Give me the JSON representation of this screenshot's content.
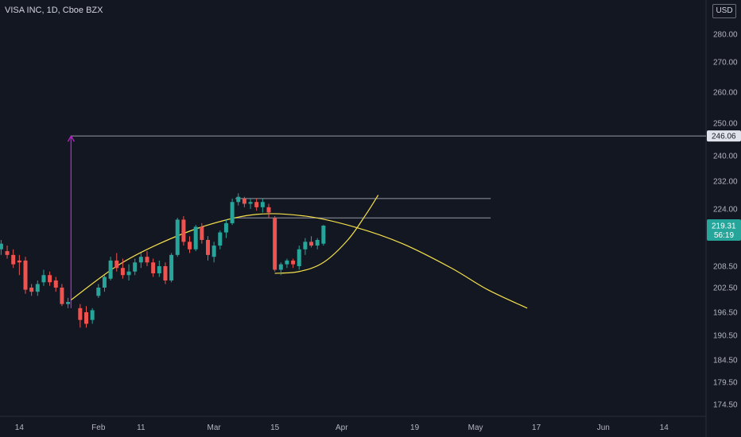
{
  "header": {
    "title": "VISA INC, 1D, Cboe BZX",
    "currency": "USD"
  },
  "chart_data": {
    "type": "candlestick",
    "title": "VISA INC, 1D, Cboe BZX",
    "ylim": [
      170,
      290
    ],
    "y_ticks": [
      {
        "label": "280.00",
        "v": 280
      },
      {
        "label": "270.00",
        "v": 270
      },
      {
        "label": "260.00",
        "v": 260
      },
      {
        "label": "250.00",
        "v": 250
      },
      {
        "label": "240.00",
        "v": 240
      },
      {
        "label": "232.00",
        "v": 232
      },
      {
        "label": "224.00",
        "v": 224
      },
      {
        "label": "208.50",
        "v": 208.5
      },
      {
        "label": "202.50",
        "v": 202.5
      },
      {
        "label": "196.50",
        "v": 196.5
      },
      {
        "label": "190.50",
        "v": 190.5
      },
      {
        "label": "184.50",
        "v": 184.5
      },
      {
        "label": "179.50",
        "v": 179.5
      },
      {
        "label": "174.50",
        "v": 174.5
      }
    ],
    "x_ticks": [
      {
        "label": "14",
        "i": -11
      },
      {
        "label": "Feb",
        "i": 2
      },
      {
        "label": "11",
        "i": 9
      },
      {
        "label": "Mar",
        "i": 21
      },
      {
        "label": "15",
        "i": 31
      },
      {
        "label": "Apr",
        "i": 42
      },
      {
        "label": "19",
        "i": 54
      },
      {
        "label": "May",
        "i": 64
      },
      {
        "label": "17",
        "i": 74
      },
      {
        "label": "Jun",
        "i": 85
      },
      {
        "label": "14",
        "i": 95
      }
    ],
    "price_tags": [
      {
        "label": "246.06",
        "v": 246.06,
        "style": "line"
      },
      {
        "label": "219.31",
        "sublabel": "56:19",
        "v": 219.31,
        "style": "last"
      }
    ],
    "candles": [
      {
        "i": -14,
        "o": 213.0,
        "h": 215.5,
        "l": 211.5,
        "c": 214.5
      },
      {
        "i": -13,
        "o": 212.5,
        "h": 214.0,
        "l": 210.5,
        "c": 211.5
      },
      {
        "i": -12,
        "o": 211.5,
        "h": 213.0,
        "l": 208.0,
        "c": 209.0
      },
      {
        "i": -11,
        "o": 210.0,
        "h": 211.5,
        "l": 206.0,
        "c": 209.5
      },
      {
        "i": -10,
        "o": 210.0,
        "h": 211.0,
        "l": 201.0,
        "c": 202.0
      },
      {
        "i": -9,
        "o": 202.5,
        "h": 203.5,
        "l": 200.5,
        "c": 201.5
      },
      {
        "i": -8,
        "o": 201.5,
        "h": 204.5,
        "l": 200.5,
        "c": 203.5
      },
      {
        "i": -7,
        "o": 204.0,
        "h": 207.5,
        "l": 203.0,
        "c": 206.0
      },
      {
        "i": -6,
        "o": 206.0,
        "h": 207.0,
        "l": 203.0,
        "c": 204.0
      },
      {
        "i": -5,
        "o": 204.5,
        "h": 205.5,
        "l": 201.5,
        "c": 202.5
      },
      {
        "i": -4,
        "o": 202.5,
        "h": 203.5,
        "l": 198.0,
        "c": 198.5
      },
      {
        "i": -3,
        "o": 198.5,
        "h": 200.0,
        "l": 197.5,
        "c": 199.0
      },
      {
        "i": -1,
        "o": 197.5,
        "h": 198.5,
        "l": 192.5,
        "c": 194.5
      },
      {
        "i": 0,
        "o": 196.5,
        "h": 198.0,
        "l": 192.5,
        "c": 193.5
      },
      {
        "i": 1,
        "o": 194.5,
        "h": 197.5,
        "l": 193.5,
        "c": 197.0
      },
      {
        "i": 2,
        "o": 200.5,
        "h": 203.5,
        "l": 200.0,
        "c": 202.5
      },
      {
        "i": 3,
        "o": 202.5,
        "h": 206.0,
        "l": 201.5,
        "c": 205.5
      },
      {
        "i": 4,
        "o": 205.0,
        "h": 211.0,
        "l": 204.5,
        "c": 210.0
      },
      {
        "i": 5,
        "o": 210.0,
        "h": 212.0,
        "l": 207.0,
        "c": 208.0
      },
      {
        "i": 6,
        "o": 208.0,
        "h": 210.5,
        "l": 205.0,
        "c": 206.0
      },
      {
        "i": 7,
        "o": 206.0,
        "h": 209.0,
        "l": 204.5,
        "c": 207.0
      },
      {
        "i": 8,
        "o": 207.0,
        "h": 210.5,
        "l": 206.0,
        "c": 209.5
      },
      {
        "i": 9,
        "o": 209.5,
        "h": 212.0,
        "l": 208.0,
        "c": 211.0
      },
      {
        "i": 10,
        "o": 211.0,
        "h": 212.5,
        "l": 208.5,
        "c": 209.5
      },
      {
        "i": 11,
        "o": 209.5,
        "h": 210.5,
        "l": 205.5,
        "c": 206.5
      },
      {
        "i": 12,
        "o": 206.5,
        "h": 210.0,
        "l": 205.5,
        "c": 208.5
      },
      {
        "i": 13,
        "o": 208.5,
        "h": 209.5,
        "l": 203.5,
        "c": 204.5
      },
      {
        "i": 14,
        "o": 204.5,
        "h": 212.0,
        "l": 204.0,
        "c": 211.5
      },
      {
        "i": 15,
        "o": 211.5,
        "h": 221.5,
        "l": 211.0,
        "c": 221.0
      },
      {
        "i": 16,
        "o": 221.0,
        "h": 222.0,
        "l": 214.0,
        "c": 215.0
      },
      {
        "i": 17,
        "o": 215.0,
        "h": 216.5,
        "l": 212.0,
        "c": 213.0
      },
      {
        "i": 18,
        "o": 213.0,
        "h": 219.5,
        "l": 212.5,
        "c": 219.0
      },
      {
        "i": 19,
        "o": 219.0,
        "h": 220.0,
        "l": 214.5,
        "c": 215.5
      },
      {
        "i": 20,
        "o": 215.5,
        "h": 216.5,
        "l": 210.0,
        "c": 211.5
      },
      {
        "i": 21,
        "o": 211.0,
        "h": 215.0,
        "l": 209.5,
        "c": 214.0
      },
      {
        "i": 22,
        "o": 214.0,
        "h": 218.0,
        "l": 213.0,
        "c": 217.5
      },
      {
        "i": 23,
        "o": 217.5,
        "h": 221.0,
        "l": 216.0,
        "c": 220.0
      },
      {
        "i": 24,
        "o": 220.0,
        "h": 227.0,
        "l": 219.5,
        "c": 226.0
      },
      {
        "i": 25,
        "o": 226.0,
        "h": 228.5,
        "l": 225.0,
        "c": 227.5
      },
      {
        "i": 26,
        "o": 227.0,
        "h": 227.5,
        "l": 224.5,
        "c": 225.5
      },
      {
        "i": 27,
        "o": 225.5,
        "h": 227.0,
        "l": 224.0,
        "c": 226.0
      },
      {
        "i": 28,
        "o": 226.0,
        "h": 227.0,
        "l": 223.5,
        "c": 224.5
      },
      {
        "i": 29,
        "o": 224.5,
        "h": 227.0,
        "l": 223.0,
        "c": 226.0
      },
      {
        "i": 30,
        "o": 224.5,
        "h": 225.5,
        "l": 221.5,
        "c": 223.0
      },
      {
        "i": 31,
        "o": 221.5,
        "h": 222.0,
        "l": 207.0,
        "c": 207.5
      },
      {
        "i": 32,
        "o": 207.5,
        "h": 209.5,
        "l": 206.0,
        "c": 209.0
      },
      {
        "i": 33,
        "o": 209.0,
        "h": 210.5,
        "l": 208.0,
        "c": 210.0
      },
      {
        "i": 34,
        "o": 210.0,
        "h": 210.5,
        "l": 208.0,
        "c": 209.0
      },
      {
        "i": 35,
        "o": 208.5,
        "h": 214.0,
        "l": 207.5,
        "c": 213.0
      },
      {
        "i": 36,
        "o": 213.0,
        "h": 216.0,
        "l": 211.5,
        "c": 215.0
      },
      {
        "i": 37,
        "o": 215.0,
        "h": 216.5,
        "l": 213.5,
        "c": 214.0
      },
      {
        "i": 38,
        "o": 214.0,
        "h": 216.0,
        "l": 213.0,
        "c": 215.5
      },
      {
        "i": 39,
        "o": 214.5,
        "h": 219.5,
        "l": 214.0,
        "c": 219.31
      }
    ],
    "drawings": {
      "arrow_from": {
        "i": -2.5,
        "v": 197.5
      },
      "arrow_to": {
        "i": -2.5,
        "v": 246.06
      },
      "hline_level": 246.06,
      "box_top": 227.0,
      "box_bottom": 221.5,
      "box_from_i": 24.5,
      "box_to_i": 66.5,
      "arc_points": [
        {
          "i": -2.5,
          "v": 199.5
        },
        {
          "i": 5,
          "v": 208.5
        },
        {
          "i": 12,
          "v": 214.5
        },
        {
          "i": 20,
          "v": 219.5
        },
        {
          "i": 28,
          "v": 222.5
        },
        {
          "i": 36,
          "v": 222.0
        },
        {
          "i": 44,
          "v": 219.0
        },
        {
          "i": 52,
          "v": 214.5
        },
        {
          "i": 60,
          "v": 208.0
        },
        {
          "i": 66,
          "v": 202.0
        },
        {
          "i": 72.5,
          "v": 197.5
        }
      ],
      "cup_points": [
        {
          "i": 31,
          "v": 206.5
        },
        {
          "i": 35,
          "v": 207.0
        },
        {
          "i": 39,
          "v": 209.5
        },
        {
          "i": 43,
          "v": 215.5
        },
        {
          "i": 46,
          "v": 222.5
        },
        {
          "i": 48,
          "v": 228.0
        }
      ]
    },
    "colors": {
      "up": "#26a69a",
      "down": "#ef5350",
      "background": "#131722",
      "arc": "#f5e04c",
      "arrow": "#c020d0",
      "drawing_line": "#9598a1",
      "last_tag": "#26a69a",
      "line_tag": "#e0e3eb"
    }
  }
}
